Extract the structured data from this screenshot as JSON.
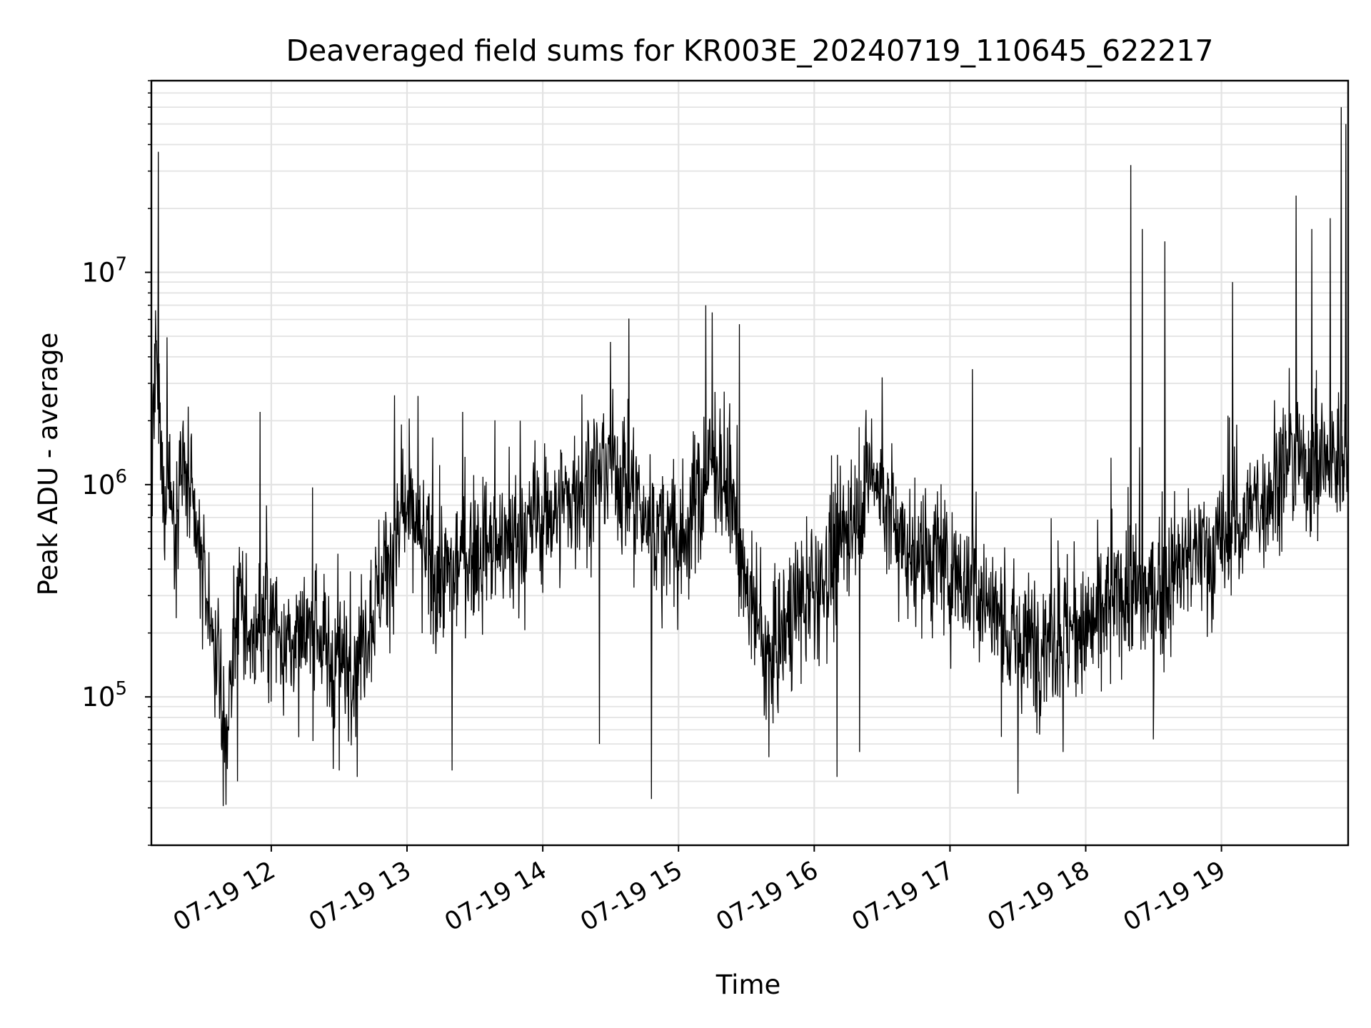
{
  "chart_data": {
    "type": "line",
    "title": "Deaveraged field sums for KR003E_20240719_110645_622217",
    "xlabel": "Time",
    "ylabel": "Peak ADU - average",
    "xlim": [
      "2024-07-19 11:07",
      "2024-07-19 19:56"
    ],
    "ylim": [
      20000,
      80000000
    ],
    "yscale": "log",
    "grid": true,
    "legend": "none",
    "line_color": "#000000",
    "x_ticks": [
      "07-19 12",
      "07-19 13",
      "07-19 14",
      "07-19 15",
      "07-19 16",
      "07-19 17",
      "07-19 18",
      "07-19 19"
    ],
    "y_ticks": [
      {
        "base": "10",
        "exp": "5"
      },
      {
        "base": "10",
        "exp": "6"
      },
      {
        "base": "10",
        "exp": "7"
      }
    ],
    "series": [
      {
        "points": [
          [
            "2024-07-19 11:07",
            1100000
          ],
          [
            "2024-07-19 11:09",
            3500000
          ],
          [
            "2024-07-19 11:12",
            900000
          ],
          [
            "2024-07-19 11:15",
            1200000
          ],
          [
            "2024-07-19 11:17",
            600000
          ],
          [
            "2024-07-19 11:20",
            1400000
          ],
          [
            "2024-07-19 11:25",
            700000
          ],
          [
            "2024-07-19 11:30",
            350000
          ],
          [
            "2024-07-19 11:35",
            200000
          ],
          [
            "2024-07-19 11:40",
            60000
          ],
          [
            "2024-07-19 11:45",
            300000
          ],
          [
            "2024-07-19 11:50",
            180000
          ],
          [
            "2024-07-19 12:00",
            230000
          ],
          [
            "2024-07-19 12:10",
            160000
          ],
          [
            "2024-07-19 12:20",
            200000
          ],
          [
            "2024-07-19 12:30",
            130000
          ],
          [
            "2024-07-19 12:40",
            180000
          ],
          [
            "2024-07-19 12:50",
            400000
          ],
          [
            "2024-07-19 13:00",
            700000
          ],
          [
            "2024-07-19 13:15",
            350000
          ],
          [
            "2024-07-19 13:30",
            500000
          ],
          [
            "2024-07-19 13:45",
            500000
          ],
          [
            "2024-07-19 14:00",
            700000
          ],
          [
            "2024-07-19 14:15",
            900000
          ],
          [
            "2024-07-19 14:30",
            1300000
          ],
          [
            "2024-07-19 14:45",
            700000
          ],
          [
            "2024-07-19 15:00",
            500000
          ],
          [
            "2024-07-19 15:15",
            1300000
          ],
          [
            "2024-07-19 15:25",
            800000
          ],
          [
            "2024-07-19 15:30",
            300000
          ],
          [
            "2024-07-19 15:40",
            150000
          ],
          [
            "2024-07-19 15:50",
            250000
          ],
          [
            "2024-07-19 16:00",
            300000
          ],
          [
            "2024-07-19 16:10",
            500000
          ],
          [
            "2024-07-19 16:25",
            1200000
          ],
          [
            "2024-07-19 16:40",
            500000
          ],
          [
            "2024-07-19 17:00",
            400000
          ],
          [
            "2024-07-19 17:15",
            300000
          ],
          [
            "2024-07-19 17:30",
            170000
          ],
          [
            "2024-07-19 17:45",
            200000
          ],
          [
            "2024-07-19 18:00",
            200000
          ],
          [
            "2024-07-19 18:15",
            300000
          ],
          [
            "2024-07-19 18:30",
            300000
          ],
          [
            "2024-07-19 18:45",
            450000
          ],
          [
            "2024-07-19 19:00",
            500000
          ],
          [
            "2024-07-19 19:15",
            800000
          ],
          [
            "2024-07-19 19:30",
            1300000
          ],
          [
            "2024-07-19 19:45",
            1200000
          ],
          [
            "2024-07-19 19:56",
            1400000
          ]
        ],
        "spikes": [
          [
            "2024-07-19 11:10",
            37000000
          ],
          [
            "2024-07-19 11:55",
            2200000
          ],
          [
            "2024-07-19 13:50",
            2000000
          ],
          [
            "2024-07-19 14:30",
            4700000
          ],
          [
            "2024-07-19 15:12",
            7000000
          ],
          [
            "2024-07-19 15:27",
            5700000
          ],
          [
            "2024-07-19 16:30",
            3200000
          ],
          [
            "2024-07-19 17:10",
            3500000
          ],
          [
            "2024-07-19 18:20",
            32000000
          ],
          [
            "2024-07-19 18:25",
            16000000
          ],
          [
            "2024-07-19 18:35",
            14000000
          ],
          [
            "2024-07-19 19:05",
            9000000
          ],
          [
            "2024-07-19 19:33",
            23000000
          ],
          [
            "2024-07-19 19:40",
            16000000
          ],
          [
            "2024-07-19 19:48",
            18000000
          ],
          [
            "2024-07-19 19:53",
            60000000
          ],
          [
            "2024-07-19 19:55",
            50000000
          ]
        ],
        "dips": [
          [
            "2024-07-19 11:35",
            80000
          ],
          [
            "2024-07-19 11:40",
            31000
          ],
          [
            "2024-07-19 11:45",
            40000
          ],
          [
            "2024-07-19 12:30",
            45000
          ],
          [
            "2024-07-19 12:38",
            42000
          ],
          [
            "2024-07-19 13:20",
            45000
          ],
          [
            "2024-07-19 14:25",
            60000
          ],
          [
            "2024-07-19 14:48",
            33000
          ],
          [
            "2024-07-19 15:40",
            52000
          ],
          [
            "2024-07-19 16:10",
            42000
          ],
          [
            "2024-07-19 16:20",
            55000
          ],
          [
            "2024-07-19 17:30",
            35000
          ],
          [
            "2024-07-19 17:50",
            55000
          ],
          [
            "2024-07-19 18:30",
            63000
          ]
        ]
      }
    ]
  }
}
